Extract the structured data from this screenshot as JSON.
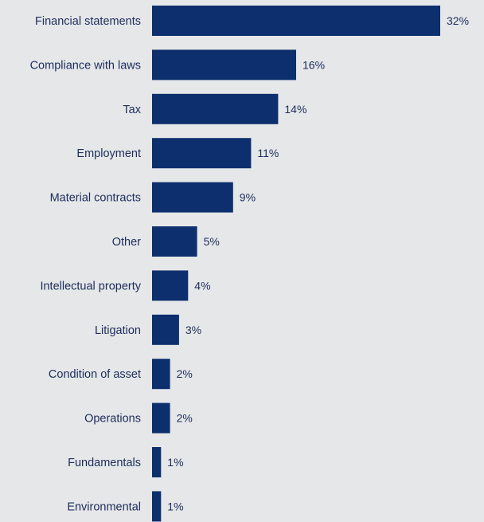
{
  "chart_data": {
    "type": "bar",
    "orientation": "horizontal",
    "categories": [
      "Financial statements",
      "Compliance with laws",
      "Tax",
      "Employment",
      "Material contracts",
      "Other",
      "Intellectual property",
      "Litigation",
      "Condition of asset",
      "Operations",
      "Fundamentals",
      "Environmental"
    ],
    "values": [
      32,
      16,
      14,
      11,
      9,
      5,
      4,
      3,
      2,
      2,
      1,
      1
    ],
    "value_labels": [
      "32%",
      "16%",
      "14%",
      "11%",
      "9%",
      "5%",
      "4%",
      "3%",
      "2%",
      "2%",
      "1%",
      "1%"
    ],
    "title": "",
    "xlabel": "",
    "ylabel": "",
    "xlim": [
      0,
      32
    ],
    "grid": false,
    "legend": "none",
    "bar_color": "#0d2f6e",
    "background_color": "#e6e7e9",
    "text_color": "#1c2d5a"
  }
}
